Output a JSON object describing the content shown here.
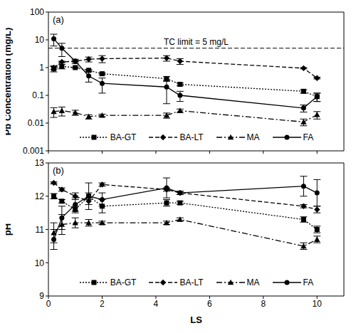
{
  "chart_data": [
    {
      "type": "line",
      "panel_label": "(a)",
      "y_label": "Pb Concentration (mg/L)",
      "log": "y",
      "x": [
        0.2,
        0.5,
        1,
        1.5,
        2,
        4.4,
        4.9,
        9.5,
        10
      ],
      "xlim": [
        0,
        11
      ],
      "xticks": [
        0,
        2,
        4,
        6,
        8,
        10
      ],
      "ylim": [
        0.001,
        100
      ],
      "yticks": [
        0.001,
        0.01,
        0.1,
        1,
        10,
        100
      ],
      "tick_labels": "y",
      "legend": "bottom",
      "reference_lines": [
        {
          "y": 5,
          "label": "TC limit = 5 mg/L",
          "line_style": "dashed"
        }
      ],
      "series": [
        {
          "name": "BA-GT",
          "color": "#000000",
          "marker": "square",
          "line_style": "dotted",
          "values": [
            0.9,
            1.1,
            1.0,
            0.8,
            0.6,
            0.4,
            0.25,
            0.14,
            0.09
          ],
          "errors": [
            0.2,
            0.2,
            0.05,
            0.05,
            0.05,
            0.08,
            0.03,
            0.02,
            0.03
          ]
        },
        {
          "name": "BA-LT",
          "color": "#000000",
          "marker": "diamond",
          "line_style": "dashed",
          "values": [
            1.0,
            1.6,
            1.7,
            2.0,
            2.1,
            2.2,
            1.7,
            0.95,
            0.42
          ],
          "errors": [
            0.15,
            0.1,
            0.1,
            0.4,
            0.6,
            0.5,
            0.4,
            0.05,
            0.03
          ]
        },
        {
          "name": "MA",
          "color": "#000000",
          "marker": "triangle",
          "line_style": "dashdot",
          "values": [
            0.026,
            0.028,
            0.024,
            0.017,
            0.019,
            0.019,
            0.028,
            0.011,
            0.02
          ],
          "errors": [
            0.01,
            0.01,
            0.005,
            0.003,
            0.002,
            0.004,
            0.004,
            0.003,
            0.006
          ]
        },
        {
          "name": "FA",
          "color": "#000000",
          "marker": "circle",
          "line_style": "solid",
          "values": [
            11,
            5,
            1.7,
            0.5,
            0.27,
            0.2,
            0.1,
            0.035,
            0.09
          ],
          "errors": [
            5,
            2.5,
            0.3,
            0.2,
            0.15,
            0.15,
            0.04,
            0.01,
            0.03
          ]
        }
      ]
    },
    {
      "type": "line",
      "panel_label": "(b)",
      "x_label": "LS",
      "y_label": "pH",
      "x": [
        0.2,
        0.5,
        1,
        1.5,
        2,
        4.4,
        4.9,
        9.5,
        10
      ],
      "xlim": [
        0,
        11
      ],
      "xticks": [
        0,
        2,
        4,
        6,
        8,
        10
      ],
      "ylim": [
        9,
        13
      ],
      "yticks": [
        9,
        10,
        11,
        12,
        13
      ],
      "legend": "bottom",
      "series": [
        {
          "name": "BA-GT",
          "color": "#000000",
          "marker": "square",
          "line_style": "dotted",
          "values": [
            12.0,
            11.85,
            11.6,
            12.0,
            11.7,
            11.8,
            11.8,
            11.3,
            11.0
          ],
          "errors": [
            0.08,
            0.05,
            0.1,
            0.1,
            0.2,
            0.1,
            0.05,
            0.08,
            0.1
          ]
        },
        {
          "name": "BA-LT",
          "color": "#000000",
          "marker": "diamond",
          "line_style": "dashed",
          "values": [
            12.4,
            12.2,
            12.0,
            11.85,
            12.35,
            12.2,
            12.1,
            11.7,
            11.6
          ],
          "errors": [
            0.03,
            0.05,
            0.1,
            0.1,
            0.05,
            0.05,
            0.05,
            0.05,
            0.1
          ]
        },
        {
          "name": "MA",
          "color": "#000000",
          "marker": "triangle",
          "line_style": "dashdot",
          "values": [
            10.9,
            11.15,
            11.2,
            11.2,
            11.2,
            11.2,
            11.3,
            10.5,
            10.7
          ],
          "errors": [
            0.3,
            0.3,
            0.15,
            0.1,
            0.05,
            0.05,
            0.05,
            0.1,
            0.1
          ]
        },
        {
          "name": "FA",
          "color": "#000000",
          "marker": "circle",
          "line_style": "solid",
          "values": [
            10.7,
            11.35,
            11.75,
            12.0,
            11.9,
            12.25,
            12.1,
            12.3,
            12.1
          ],
          "errors": [
            0.3,
            0.35,
            0.2,
            0.4,
            0.2,
            0.3,
            0.05,
            0.3,
            0.4
          ]
        }
      ]
    }
  ]
}
